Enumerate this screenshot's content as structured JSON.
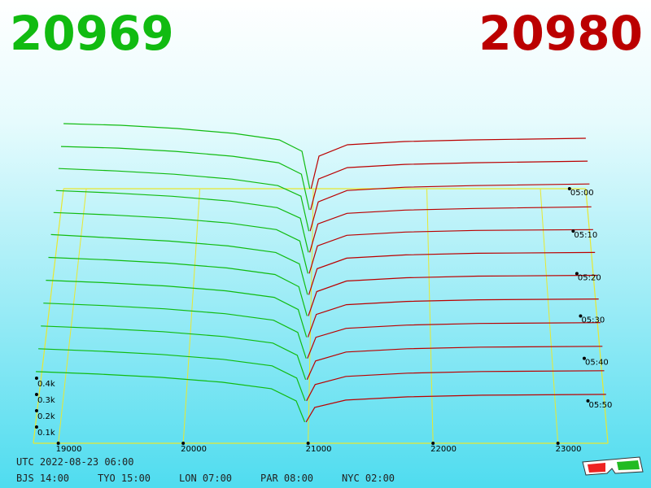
{
  "chart_data": {
    "type": "depth3d",
    "bid_price": 20969,
    "ask_price": 20980,
    "bid_color": "#11bb11",
    "ask_color": "#bb0000",
    "floor_color": "#e8e830",
    "xlim": [
      18800,
      23400
    ],
    "xticks": [
      19000,
      20000,
      21000,
      22000,
      23000
    ],
    "ylim": [
      0,
      450
    ],
    "yticks": [
      {
        "value": 100,
        "label": "0.1k"
      },
      {
        "value": 200,
        "label": "0.2k"
      },
      {
        "value": 300,
        "label": "0.3k"
      },
      {
        "value": 400,
        "label": "0.4k"
      }
    ],
    "zlim": [
      0,
      60
    ],
    "zticks": [
      {
        "value": 0,
        "label": "05:00"
      },
      {
        "value": 10,
        "label": "05:10"
      },
      {
        "value": 20,
        "label": "05:20"
      },
      {
        "value": 30,
        "label": "05:30"
      },
      {
        "value": 40,
        "label": "05:40"
      },
      {
        "value": 50,
        "label": "05:50"
      }
    ],
    "bid_prices": [
      18800,
      19300,
      19800,
      20300,
      20700,
      20900,
      20969
    ],
    "ask_prices": [
      20980,
      21050,
      21300,
      21800,
      22400,
      23400
    ],
    "snapshots": [
      {
        "time": 0,
        "bids": [
          400,
          390,
          370,
          340,
          300,
          230,
          0
        ],
        "asks": [
          0,
          200,
          270,
          290,
          300,
          310
        ]
      },
      {
        "time": 5,
        "bids": [
          390,
          380,
          360,
          330,
          290,
          220,
          0
        ],
        "asks": [
          0,
          190,
          260,
          280,
          290,
          300
        ]
      },
      {
        "time": 10,
        "bids": [
          385,
          370,
          350,
          320,
          280,
          215,
          0
        ],
        "asks": [
          0,
          180,
          250,
          270,
          280,
          290
        ]
      },
      {
        "time": 15,
        "bids": [
          380,
          365,
          345,
          315,
          275,
          210,
          0
        ],
        "asks": [
          0,
          175,
          240,
          260,
          270,
          280
        ]
      },
      {
        "time": 20,
        "bids": [
          375,
          360,
          340,
          310,
          270,
          200,
          0
        ],
        "asks": [
          0,
          170,
          235,
          255,
          265,
          270
        ]
      },
      {
        "time": 25,
        "bids": [
          370,
          350,
          330,
          300,
          260,
          190,
          0
        ],
        "asks": [
          0,
          160,
          225,
          245,
          255,
          260
        ]
      },
      {
        "time": 30,
        "bids": [
          360,
          345,
          325,
          295,
          255,
          180,
          0
        ],
        "asks": [
          0,
          150,
          215,
          235,
          245,
          250
        ]
      },
      {
        "time": 35,
        "bids": [
          350,
          335,
          315,
          285,
          245,
          170,
          0
        ],
        "asks": [
          0,
          140,
          200,
          220,
          230,
          235
        ]
      },
      {
        "time": 40,
        "bids": [
          340,
          325,
          305,
          275,
          235,
          160,
          0
        ],
        "asks": [
          0,
          130,
          185,
          205,
          215,
          220
        ]
      },
      {
        "time": 45,
        "bids": [
          330,
          315,
          295,
          265,
          225,
          150,
          0
        ],
        "asks": [
          0,
          115,
          170,
          190,
          200,
          205
        ]
      },
      {
        "time": 50,
        "bids": [
          320,
          305,
          285,
          255,
          215,
          140,
          0
        ],
        "asks": [
          0,
          100,
          150,
          170,
          180,
          185
        ]
      },
      {
        "time": 55,
        "bids": [
          310,
          295,
          275,
          245,
          205,
          130,
          0
        ],
        "asks": [
          0,
          90,
          135,
          155,
          165,
          170
        ]
      }
    ]
  },
  "footer": {
    "utc": "UTC 2022-08-23 06:00",
    "cities": [
      "BJS 14:00",
      "TYO 15:00",
      "LON 07:00",
      "PAR 08:00",
      "NYC 02:00"
    ]
  }
}
